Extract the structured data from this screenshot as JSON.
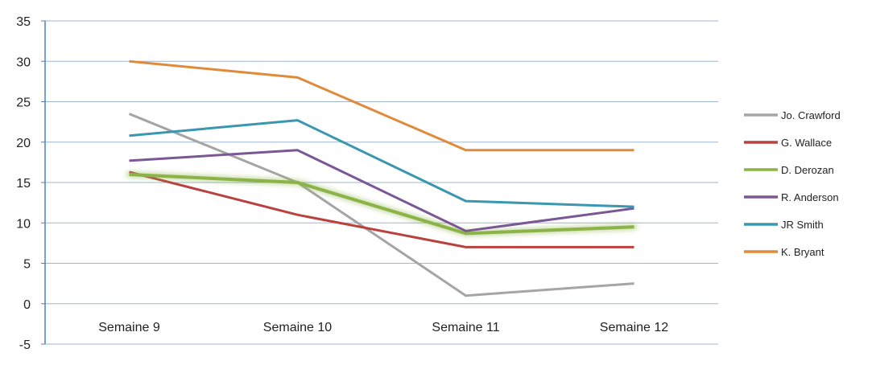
{
  "chart_data": {
    "type": "line",
    "title": "",
    "xlabel": "",
    "ylabel": "",
    "categories": [
      "Semaine 9",
      "Semaine 10",
      "Semaine 11",
      "Semaine 12"
    ],
    "ylim": [
      -5,
      35
    ],
    "yticks": [
      35,
      30,
      25,
      20,
      15,
      10,
      5,
      0,
      -5
    ],
    "grid": true,
    "legend_position": "right",
    "series": [
      {
        "name": "Jo. Crawford",
        "color": "#a5a5a5",
        "values": [
          23.5,
          15,
          1,
          2.5
        ]
      },
      {
        "name": "G. Wallace",
        "color": "#b9423f",
        "values": [
          16.3,
          11,
          7,
          7
        ]
      },
      {
        "name": "D. Derozan",
        "color": "#8cb347",
        "values": [
          16,
          15,
          8.7,
          9.5
        ]
      },
      {
        "name": "R. Anderson",
        "color": "#7b5796",
        "values": [
          17.7,
          19,
          9,
          11.8
        ]
      },
      {
        "name": "JR Smith",
        "color": "#3b97b0",
        "values": [
          20.8,
          22.7,
          12.7,
          12
        ]
      },
      {
        "name": "K. Bryant",
        "color": "#e08a3c",
        "values": [
          30,
          28,
          19,
          19
        ]
      }
    ],
    "colors": {
      "gridline": "#9fb6cf",
      "axis": "#4f81bd"
    }
  }
}
